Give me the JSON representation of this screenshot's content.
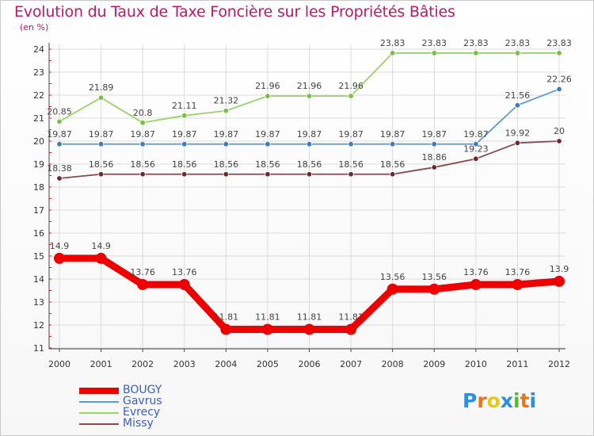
{
  "title": "Evolution du Taux de Taxe Foncière sur les Propriétés Bâties",
  "unit_label": "(en %)",
  "logo": {
    "text": "Proxiti",
    "letter_colors": [
      "#2b8de3",
      "#e8751a",
      "#e8c61a",
      "#2b8de3",
      "#5bb536",
      "#e8751a",
      "#2b8de3"
    ]
  },
  "chart_data": {
    "type": "line",
    "x": [
      "2000",
      "2001",
      "2002",
      "2003",
      "2004",
      "2005",
      "2006",
      "2007",
      "2008",
      "2009",
      "2010",
      "2011",
      "2012"
    ],
    "ylim": [
      11,
      24
    ],
    "yticks": [
      11,
      12,
      13,
      14,
      15,
      16,
      17,
      18,
      19,
      20,
      21,
      22,
      23,
      24
    ],
    "grid": true,
    "legend_position": "bottom-left",
    "series": [
      {
        "name": "Gavrus",
        "color": "#5b9bd5",
        "marker": "#3a7cc4",
        "values": [
          19.87,
          19.87,
          19.87,
          19.87,
          19.87,
          19.87,
          19.87,
          19.87,
          19.87,
          19.87,
          19.87,
          21.56,
          22.26
        ]
      },
      {
        "name": "Evrecy",
        "color": "#9bd36a",
        "marker": "#7ac143",
        "values": [
          20.85,
          21.89,
          20.8,
          21.11,
          21.32,
          21.96,
          21.96,
          21.96,
          23.83,
          23.83,
          23.83,
          23.83,
          23.83
        ]
      },
      {
        "name": "Missy",
        "color": "#8b4a4a",
        "marker": "#6b2a2a",
        "values": [
          18.38,
          18.56,
          18.56,
          18.56,
          18.56,
          18.56,
          18.56,
          18.56,
          18.56,
          18.86,
          19.23,
          19.92,
          20
        ]
      },
      {
        "name": "BOUGY",
        "color": "#ee0000",
        "marker": "#ee0000",
        "values": [
          14.9,
          14.9,
          13.76,
          13.76,
          11.81,
          11.81,
          11.81,
          11.81,
          13.56,
          13.56,
          13.76,
          13.76,
          13.9
        ]
      }
    ],
    "legend_order": [
      "BOUGY",
      "Gavrus",
      "Evrecy",
      "Missy"
    ],
    "labels": {
      "BOUGY": [
        "14.9",
        "14.9",
        "13.76",
        "13.76",
        "11.81",
        "11.81",
        "11.81",
        "11.81",
        "13.56",
        "13.56",
        "13.76",
        "13.76",
        "13.9"
      ],
      "Gavrus": [
        "19.87",
        "19.87",
        "19.87",
        "19.87",
        "19.87",
        "19.87",
        "19.87",
        "19.87",
        "19.87",
        "19.87",
        "19.87",
        "21.56",
        "22.26"
      ],
      "Evrecy": [
        "20.85",
        "21.89",
        "20.8",
        "21.11",
        "21.32",
        "21.96",
        "21.96",
        "21.96",
        "23.83",
        "23.83",
        "23.83",
        "23.83",
        "23.83"
      ],
      "Missy": [
        "18.38",
        "18.56",
        "18.56",
        "18.56",
        "18.56",
        "18.56",
        "18.56",
        "18.56",
        "18.56",
        "18.86",
        "19.23",
        "19.92",
        "20"
      ]
    }
  }
}
